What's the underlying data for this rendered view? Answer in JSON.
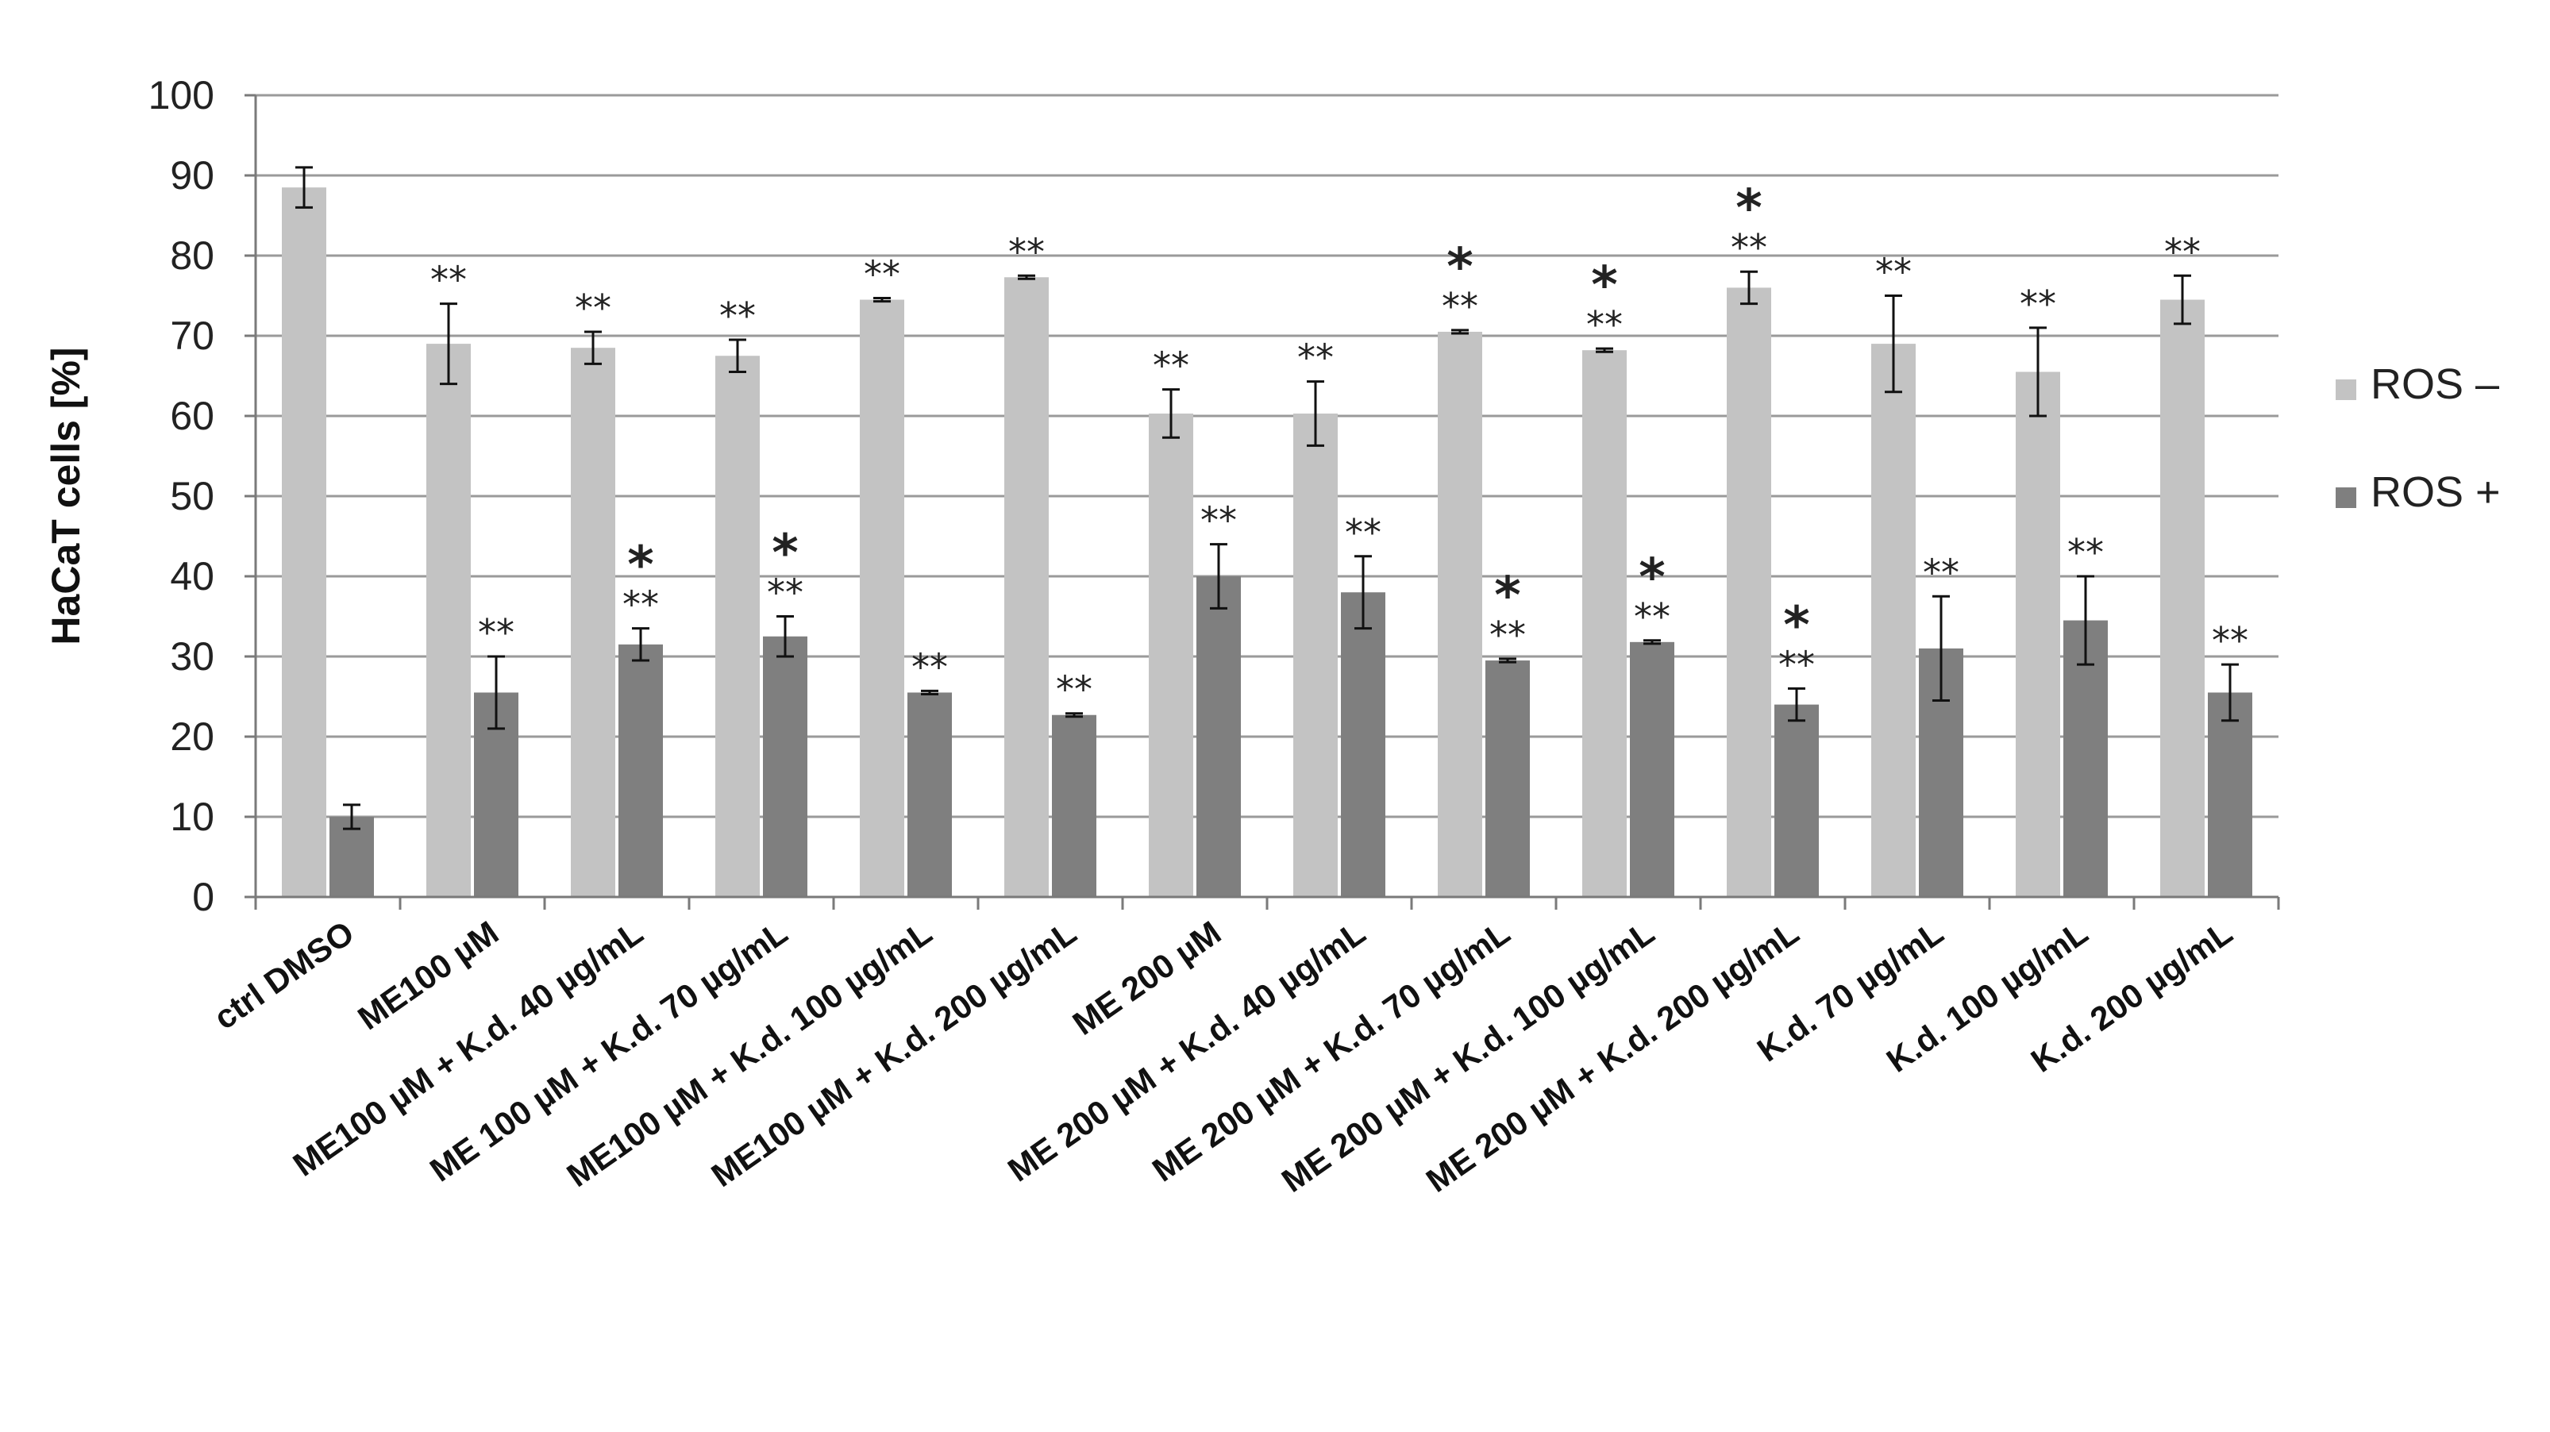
{
  "chart_data": {
    "type": "bar",
    "title": "",
    "xlabel": "",
    "ylabel": "HaCaT cells [%]",
    "ylim": [
      0,
      100
    ],
    "yticks": [
      0,
      10,
      20,
      30,
      40,
      50,
      60,
      70,
      80,
      90,
      100
    ],
    "grid": true,
    "legend_position": "right",
    "categories": [
      "ctrl DMSO",
      "ME100 µM",
      "ME100 µM + K.d. 40 µg/mL",
      "ME 100 µM + K.d. 70 µg/mL",
      "ME100 µM + K.d. 100 µg/mL",
      "ME100 µM + K.d. 200 µg/mL",
      "ME 200 µM",
      "ME 200 µM + K.d. 40 µg/mL",
      "ME 200 µM + K.d. 70 µg/mL",
      "ME 200 µM + K.d. 100 µg/mL",
      "ME 200 µM + K.d. 200 µg/mL",
      "K.d. 70 µg/mL",
      "K.d. 100 µg/mL",
      "K.d. 200 µg/mL"
    ],
    "series": [
      {
        "name": "ROS –",
        "color": "#c3c3c3",
        "values": [
          88.5,
          69,
          68.5,
          67.5,
          74.5,
          77.3,
          60.3,
          60.3,
          70.5,
          68.2,
          76,
          69,
          65.5,
          74.5
        ],
        "errors": [
          2.5,
          5,
          2,
          2,
          0.2,
          0.2,
          3,
          4,
          0.2,
          0.2,
          2,
          6,
          5.5,
          3
        ],
        "annotations": [
          "",
          "**",
          "**",
          "**",
          "**",
          "**",
          "**",
          "**",
          "*|**",
          "*|**",
          "*|**",
          "**",
          "**",
          "**"
        ]
      },
      {
        "name": "ROS +",
        "color": "#7f7f7f",
        "values": [
          10,
          25.5,
          31.5,
          32.5,
          25.5,
          22.7,
          40,
          38,
          29.5,
          31.8,
          24,
          31,
          34.5,
          25.5
        ],
        "errors": [
          1.5,
          4.5,
          2,
          2.5,
          0.2,
          0.2,
          4,
          4.5,
          0.2,
          0.2,
          2,
          6.5,
          5.5,
          3.5
        ],
        "annotations": [
          "",
          "**",
          "*|**",
          "*|**",
          "**",
          "**",
          "**",
          "**",
          "*|**",
          "*|**",
          "*|**",
          "**",
          "**",
          "**"
        ]
      }
    ]
  }
}
